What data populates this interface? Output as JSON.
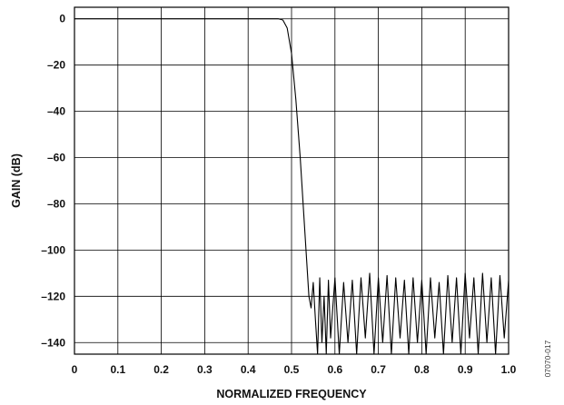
{
  "chart_data": {
    "type": "line",
    "title": "",
    "xlabel": "NORMALIZED FREQUENCY",
    "ylabel": "GAIN (dB)",
    "xlim": [
      0,
      1.0
    ],
    "ylim": [
      -145,
      5
    ],
    "grid": true,
    "legend": "none",
    "x_ticks": [
      {
        "value": 0,
        "label": "0"
      },
      {
        "value": 0.1,
        "label": "0.1"
      },
      {
        "value": 0.2,
        "label": "0.2"
      },
      {
        "value": 0.3,
        "label": "0.3"
      },
      {
        "value": 0.4,
        "label": "0.4"
      },
      {
        "value": 0.5,
        "label": "0.5"
      },
      {
        "value": 0.6,
        "label": "0.6"
      },
      {
        "value": 0.7,
        "label": "0.7"
      },
      {
        "value": 0.8,
        "label": "0.8"
      },
      {
        "value": 0.9,
        "label": "0.9"
      },
      {
        "value": 1.0,
        "label": "1.0"
      }
    ],
    "y_ticks": [
      {
        "value": 0,
        "label": "0"
      },
      {
        "value": -20,
        "label": "–20"
      },
      {
        "value": -40,
        "label": "–40"
      },
      {
        "value": -60,
        "label": "–60"
      },
      {
        "value": -80,
        "label": "–80"
      },
      {
        "value": -100,
        "label": "–100"
      },
      {
        "value": -120,
        "label": "–120"
      },
      {
        "value": -140,
        "label": "–140"
      }
    ],
    "series": [
      {
        "color": "#000000",
        "x": [
          0,
          0.1,
          0.2,
          0.3,
          0.4,
          0.44,
          0.46,
          0.47,
          0.48,
          0.49,
          0.5,
          0.51,
          0.52,
          0.53,
          0.54,
          0.545,
          0.55,
          0.555,
          0.56,
          0.565,
          0.57,
          0.575,
          0.58,
          0.585,
          0.59,
          0.6,
          0.61,
          0.62,
          0.63,
          0.64,
          0.65,
          0.66,
          0.67,
          0.68,
          0.69,
          0.7,
          0.71,
          0.72,
          0.73,
          0.74,
          0.75,
          0.76,
          0.77,
          0.78,
          0.79,
          0.8,
          0.81,
          0.82,
          0.83,
          0.84,
          0.85,
          0.86,
          0.87,
          0.88,
          0.89,
          0.9,
          0.91,
          0.92,
          0.93,
          0.94,
          0.95,
          0.96,
          0.97,
          0.98,
          0.99,
          1.0
        ],
        "y": [
          0,
          0,
          0,
          0,
          0,
          0,
          0,
          0,
          -0.5,
          -4,
          -15,
          -35,
          -60,
          -90,
          -120,
          -125,
          -114,
          -130,
          -145,
          -112,
          -140,
          -120,
          -145,
          -113,
          -138,
          -112,
          -145,
          -114,
          -140,
          -113,
          -145,
          -112,
          -138,
          -110,
          -145,
          -112,
          -140,
          -111,
          -145,
          -112,
          -138,
          -113,
          -145,
          -112,
          -140,
          -113,
          -145,
          -112,
          -138,
          -114,
          -145,
          -111,
          -140,
          -112,
          -145,
          -110,
          -138,
          -112,
          -145,
          -110,
          -140,
          -112,
          -145,
          -111,
          -138,
          -113
        ]
      }
    ]
  },
  "figure_id": "07070-017"
}
